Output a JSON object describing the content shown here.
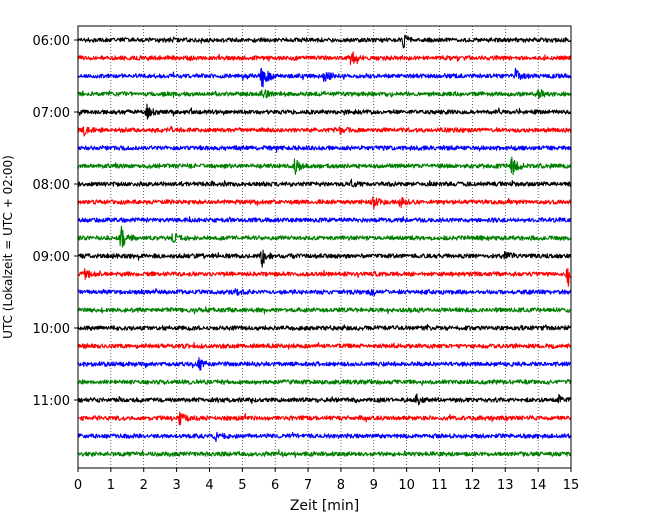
{
  "chart_data": {
    "type": "line",
    "subtype": "helicorder",
    "title": "",
    "xlabel": "Zeit  [min]",
    "ylabel": "UTC (Lokalzeit = UTC + 02:00)",
    "xlim": [
      0,
      15
    ],
    "x_ticks": [
      "0",
      "1",
      "2",
      "3",
      "4",
      "5",
      "6",
      "7",
      "8",
      "9",
      "10",
      "11",
      "12",
      "13",
      "14",
      "15"
    ],
    "y_tick_labels": [
      "06:00",
      "07:00",
      "08:00",
      "09:00",
      "10:00",
      "11:00"
    ],
    "traces_per_hour": 4,
    "minutes_per_trace": 15,
    "grid": "vertical dotted at each minute",
    "legend": "none",
    "trace_colors": [
      "#000000",
      "#ff0000",
      "#0000ff",
      "#008000"
    ],
    "series": [
      {
        "start": "06:00",
        "color": "#000000",
        "events": [
          [
            9.9,
            0.6
          ]
        ]
      },
      {
        "start": "06:15",
        "color": "#ff0000",
        "events": [
          [
            8.3,
            0.8
          ]
        ]
      },
      {
        "start": "06:30",
        "color": "#0000ff",
        "events": [
          [
            5.6,
            1.6
          ],
          [
            7.5,
            0.8
          ],
          [
            13.3,
            0.8
          ]
        ]
      },
      {
        "start": "06:45",
        "color": "#008000",
        "events": [
          [
            5.6,
            0.6
          ],
          [
            14.0,
            0.6
          ]
        ]
      },
      {
        "start": "07:00",
        "color": "#000000",
        "events": [
          [
            2.1,
            0.6
          ]
        ]
      },
      {
        "start": "07:15",
        "color": "#ff0000",
        "events": [
          [
            0.2,
            0.6
          ],
          [
            7.9,
            0.5
          ]
        ]
      },
      {
        "start": "07:30",
        "color": "#0000ff",
        "events": []
      },
      {
        "start": "07:45",
        "color": "#008000",
        "events": [
          [
            6.6,
            0.8
          ],
          [
            13.2,
            1.0
          ]
        ]
      },
      {
        "start": "08:00",
        "color": "#000000",
        "events": [
          [
            8.3,
            0.3
          ]
        ]
      },
      {
        "start": "08:15",
        "color": "#ff0000",
        "events": [
          [
            9.0,
            0.6
          ],
          [
            9.8,
            0.5
          ]
        ]
      },
      {
        "start": "08:30",
        "color": "#0000ff",
        "events": []
      },
      {
        "start": "08:45",
        "color": "#008000",
        "events": [
          [
            1.3,
            1.2
          ],
          [
            2.9,
            0.5
          ]
        ]
      },
      {
        "start": "09:00",
        "color": "#000000",
        "events": [
          [
            5.6,
            0.9
          ],
          [
            13.0,
            0.5
          ]
        ]
      },
      {
        "start": "09:15",
        "color": "#ff0000",
        "events": [
          [
            14.9,
            1.2
          ],
          [
            0.2,
            0.4
          ]
        ]
      },
      {
        "start": "09:30",
        "color": "#0000ff",
        "events": [
          [
            4.8,
            0.4
          ]
        ]
      },
      {
        "start": "09:45",
        "color": "#008000",
        "events": []
      },
      {
        "start": "10:00",
        "color": "#000000",
        "events": []
      },
      {
        "start": "10:15",
        "color": "#ff0000",
        "events": []
      },
      {
        "start": "10:30",
        "color": "#0000ff",
        "events": [
          [
            3.7,
            0.6
          ]
        ]
      },
      {
        "start": "10:45",
        "color": "#008000",
        "events": []
      },
      {
        "start": "11:00",
        "color": "#000000",
        "events": [
          [
            10.3,
            0.5
          ],
          [
            14.6,
            0.5
          ]
        ]
      },
      {
        "start": "11:15",
        "color": "#ff0000",
        "events": [
          [
            3.1,
            0.6
          ]
        ]
      },
      {
        "start": "11:30",
        "color": "#0000ff",
        "events": [
          [
            4.2,
            0.4
          ]
        ]
      },
      {
        "start": "11:45",
        "color": "#008000",
        "events": []
      }
    ]
  }
}
